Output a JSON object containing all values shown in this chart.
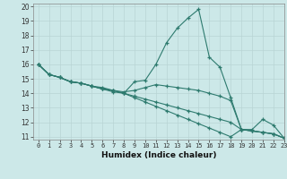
{
  "title": "",
  "xlabel": "Humidex (Indice chaleur)",
  "bg_color": "#cce8e8",
  "line_color": "#2d7a6e",
  "grid_color": "#b8d4d4",
  "xlim": [
    -0.5,
    23
  ],
  "ylim": [
    10.8,
    20.2
  ],
  "xticks": [
    0,
    1,
    2,
    3,
    4,
    5,
    6,
    7,
    8,
    9,
    10,
    11,
    12,
    13,
    14,
    15,
    16,
    17,
    18,
    19,
    20,
    21,
    22,
    23
  ],
  "yticks": [
    11,
    12,
    13,
    14,
    15,
    16,
    17,
    18,
    19,
    20
  ],
  "series": [
    [
      16.0,
      15.3,
      15.1,
      14.8,
      14.7,
      14.5,
      14.3,
      14.1,
      14.0,
      14.8,
      14.9,
      16.0,
      17.5,
      18.5,
      19.2,
      19.8,
      16.5,
      15.8,
      13.7,
      11.5,
      11.5,
      12.2,
      11.8,
      10.9
    ],
    [
      16.0,
      15.3,
      15.1,
      14.8,
      14.7,
      14.5,
      14.4,
      14.2,
      14.1,
      14.2,
      14.4,
      14.6,
      14.5,
      14.4,
      14.3,
      14.2,
      14.0,
      13.8,
      13.5,
      11.5,
      11.4,
      11.3,
      11.2,
      10.9
    ],
    [
      16.0,
      15.3,
      15.1,
      14.8,
      14.7,
      14.5,
      14.3,
      14.2,
      14.0,
      13.8,
      13.6,
      13.4,
      13.2,
      13.0,
      12.8,
      12.6,
      12.4,
      12.2,
      12.0,
      11.5,
      11.4,
      11.3,
      11.2,
      10.9
    ],
    [
      16.0,
      15.3,
      15.1,
      14.8,
      14.7,
      14.5,
      14.3,
      14.2,
      14.0,
      13.7,
      13.4,
      13.1,
      12.8,
      12.5,
      12.2,
      11.9,
      11.6,
      11.3,
      11.0,
      11.5,
      11.4,
      11.3,
      11.2,
      10.9
    ]
  ]
}
